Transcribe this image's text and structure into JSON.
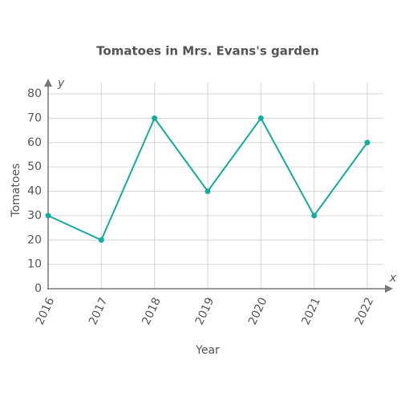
{
  "chart_data": {
    "type": "line",
    "title": "Tomatoes in Mrs. Evans's garden",
    "x_label": "Year",
    "y_label": "Tomatoes",
    "x_axis_symbol": "x",
    "y_axis_symbol": "y",
    "categories": [
      "2016",
      "2017",
      "2018",
      "2019",
      "2020",
      "2021",
      "2022"
    ],
    "series": [
      {
        "name": "Tomatoes",
        "color": "#1aa99d",
        "values": [
          30,
          20,
          70,
          40,
          70,
          30,
          60
        ]
      }
    ],
    "ylim": [
      0,
      80
    ],
    "yticks": [
      0,
      10,
      20,
      30,
      40,
      50,
      60,
      70,
      80
    ],
    "grid": true
  }
}
